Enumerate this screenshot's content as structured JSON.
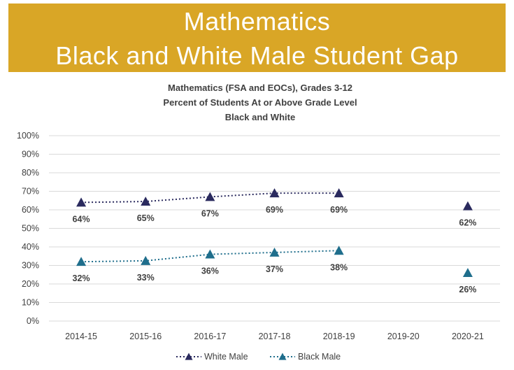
{
  "banner": {
    "line1": "Mathematics",
    "line2": "Black and White Male Student Gap"
  },
  "colors": {
    "banner": "#d9a626",
    "white_male": "#2a2a5e",
    "black_male": "#1f6e8c",
    "grid": "#d9d9d9",
    "text": "#404040"
  },
  "chart_data": {
    "type": "line",
    "title": [
      "Mathematics (FSA and EOCs), Grades 3-12",
      "Percent of Students At or Above Grade Level",
      "Black and White"
    ],
    "categories": [
      "2014-15",
      "2015-16",
      "2016-17",
      "2017-18",
      "2018-19",
      "2019-20",
      "2020-21"
    ],
    "ylim": [
      0,
      100
    ],
    "yticks": [
      "0%",
      "10%",
      "20%",
      "30%",
      "40%",
      "50%",
      "60%",
      "70%",
      "80%",
      "90%",
      "100%"
    ],
    "grid": true,
    "legend_position": "bottom",
    "series": [
      {
        "name": "White Male",
        "values": [
          64,
          64.5,
          67,
          69,
          69,
          null,
          62
        ],
        "labels": [
          "64%",
          "65%",
          "67%",
          "69%",
          "69%",
          "",
          "62%"
        ]
      },
      {
        "name": "Black Male",
        "values": [
          32,
          32.5,
          36,
          37,
          38,
          null,
          26
        ],
        "labels": [
          "32%",
          "33%",
          "36%",
          "37%",
          "38%",
          "",
          "26%"
        ]
      }
    ]
  }
}
